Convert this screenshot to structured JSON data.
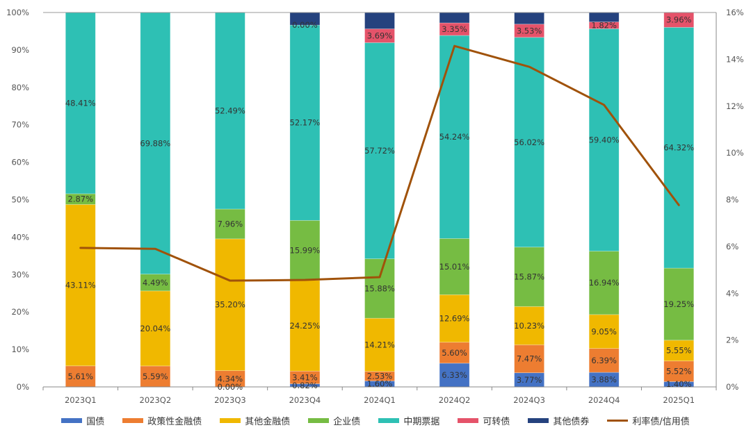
{
  "chart_data": {
    "type": "bar",
    "stacked": true,
    "categories": [
      "2023Q1",
      "2023Q2",
      "2023Q3",
      "2023Q4",
      "2024Q1",
      "2024Q2",
      "2024Q3",
      "2024Q4",
      "2025Q1"
    ],
    "y_left": {
      "range": [
        0,
        100
      ],
      "ticks": [
        "0%",
        "10%",
        "20%",
        "30%",
        "40%",
        "50%",
        "60%",
        "70%",
        "80%",
        "90%",
        "100%"
      ]
    },
    "y_right": {
      "range": [
        0,
        16
      ],
      "ticks": [
        "0%",
        "2%",
        "4%",
        "6%",
        "8%",
        "10%",
        "12%",
        "14%",
        "16%"
      ]
    },
    "grid": false,
    "legend_position": "bottom",
    "series": [
      {
        "name": "国债",
        "color": "#4472C4",
        "values": [
          0,
          0,
          0,
          0.82,
          1.6,
          6.33,
          3.77,
          3.88,
          1.4
        ],
        "labels": [
          "",
          "",
          "0.00%",
          "0.82%",
          "1.60%",
          "6.33%",
          "3.77%",
          "3.88%",
          "1.40%"
        ]
      },
      {
        "name": "政策性金融债",
        "color": "#ED7D31",
        "values": [
          5.61,
          5.59,
          4.34,
          3.41,
          2.53,
          5.6,
          7.47,
          6.39,
          5.52
        ],
        "labels": [
          "5.61%",
          "5.59%",
          "4.34%",
          "3.41%",
          "2.53%",
          "5.60%",
          "7.47%",
          "6.39%",
          "5.52%"
        ]
      },
      {
        "name": "其他金融债",
        "color": "#F0B800",
        "values": [
          43.11,
          20.04,
          35.2,
          24.25,
          14.21,
          12.69,
          10.23,
          9.05,
          5.55
        ],
        "labels": [
          "43.11%",
          "20.04%",
          "35.20%",
          "24.25%",
          "14.21%",
          "12.69%",
          "10.23%",
          "9.05%",
          "5.55%"
        ]
      },
      {
        "name": "企业债",
        "color": "#76BC43",
        "values": [
          2.87,
          4.49,
          7.96,
          15.99,
          15.88,
          15.01,
          15.87,
          16.94,
          19.25
        ],
        "labels": [
          "2.87%",
          "4.49%",
          "7.96%",
          "15.99%",
          "15.88%",
          "15.01%",
          "15.87%",
          "16.94%",
          "19.25%"
        ]
      },
      {
        "name": "中期票据",
        "color": "#2EC0B4",
        "values": [
          48.41,
          69.88,
          52.49,
          52.17,
          57.72,
          54.24,
          56.02,
          59.4,
          64.32
        ],
        "labels": [
          "48.41%",
          "69.88%",
          "52.49%",
          "52.17%",
          "57.72%",
          "54.24%",
          "56.02%",
          "59.40%",
          "64.32%"
        ]
      },
      {
        "name": "可转债",
        "color": "#E5536A",
        "values": [
          0,
          0,
          0,
          0,
          3.69,
          3.35,
          3.53,
          1.82,
          3.96
        ],
        "labels": [
          "",
          "",
          "",
          "0.00%",
          "3.69%",
          "3.35%",
          "3.53%",
          "1.82%",
          "3.96%"
        ]
      },
      {
        "name": "其他债券",
        "color": "#25427E",
        "values": [
          0,
          0,
          0,
          3.36,
          4.37,
          2.78,
          3.11,
          2.52,
          0
        ],
        "labels": [
          "",
          "",
          "",
          "",
          "",
          "",
          "",
          "",
          ""
        ]
      }
    ],
    "line": {
      "name": "利率债/信用债",
      "color": "#A0520A",
      "axis": "right",
      "values": [
        5.94,
        5.9,
        4.54,
        4.57,
        4.69,
        14.57,
        13.68,
        12.05,
        7.77
      ]
    }
  }
}
